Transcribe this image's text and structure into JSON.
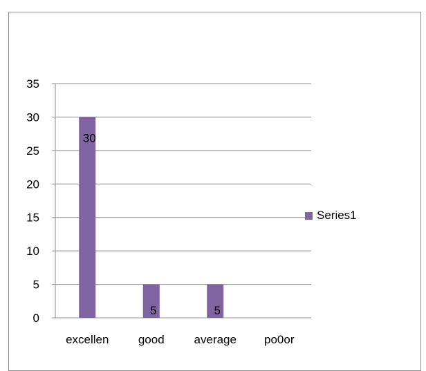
{
  "chart_data": {
    "type": "bar",
    "categories": [
      "excellen",
      "good",
      "average",
      "po0or"
    ],
    "series": [
      {
        "name": "Series1",
        "values": [
          30,
          5,
          5,
          0
        ],
        "color": "#8064a2"
      }
    ],
    "data_labels": [
      "30",
      "5",
      "5",
      ""
    ],
    "title": "",
    "xlabel": "",
    "ylabel": "",
    "ylim": [
      0,
      35
    ],
    "yticks": [
      0,
      5,
      10,
      15,
      20,
      25,
      30,
      35
    ],
    "grid": true,
    "legend_position": "right"
  },
  "colors": {
    "gridline": "#8c8c8c",
    "border": "#8c8c8c"
  }
}
